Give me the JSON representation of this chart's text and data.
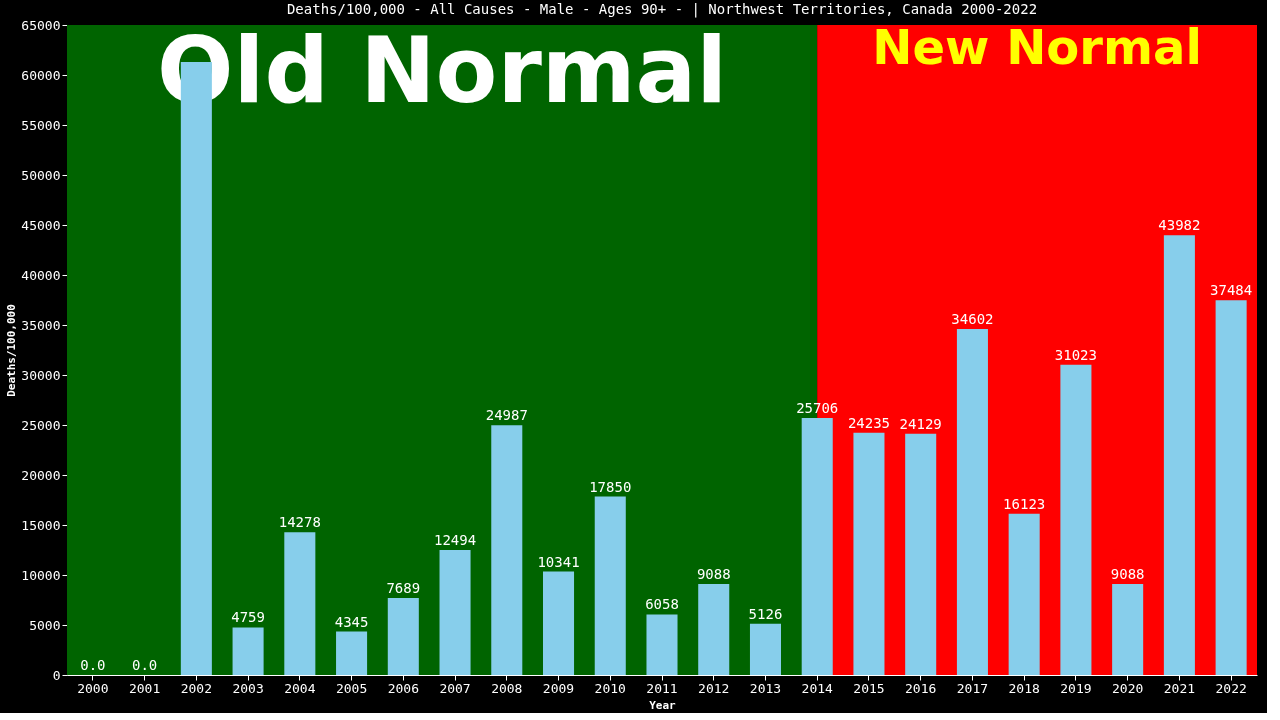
{
  "chart_data": {
    "type": "bar",
    "title": "Deaths/100,000 - All Causes - Male - Ages 90+ -  | Northwest Territories, Canada 2000-2022",
    "xlabel": "Year",
    "ylabel": "Deaths/100,000",
    "categories": [
      "2000",
      "2001",
      "2002",
      "2003",
      "2004",
      "2005",
      "2006",
      "2007",
      "2008",
      "2009",
      "2010",
      "2011",
      "2012",
      "2013",
      "2014",
      "2015",
      "2016",
      "2017",
      "2018",
      "2019",
      "2020",
      "2021",
      "2022"
    ],
    "values": [
      0,
      0,
      61300,
      4759,
      14278,
      4345,
      7689,
      12494,
      24987,
      10341,
      17850,
      6058,
      9088,
      5126,
      25706,
      24235,
      24129,
      34602,
      16123,
      31023,
      9088,
      43982,
      37484
    ],
    "value_labels": [
      "0.0",
      "0.0",
      null,
      "4759",
      "14278",
      "4345",
      "7689",
      "12494",
      "24987",
      "10341",
      "17850",
      "6058",
      "9088",
      "5126",
      "25706",
      "24235",
      "24129",
      "34602",
      "16123",
      "31023",
      "9088",
      "43982",
      "37484"
    ],
    "color": "#87ceeb",
    "ylim": [
      0,
      65000
    ],
    "yticks": [
      0,
      5000,
      10000,
      15000,
      20000,
      25000,
      30000,
      35000,
      40000,
      45000,
      50000,
      55000,
      60000,
      65000
    ],
    "bands": [
      {
        "axis": "x",
        "from": "2000",
        "to": "2014",
        "label": "Old Normal",
        "color": "#006400"
      },
      {
        "axis": "x",
        "from": "2014",
        "to": "2022",
        "label": "New Normal",
        "color": "#ff0000"
      }
    ],
    "grid": false
  }
}
